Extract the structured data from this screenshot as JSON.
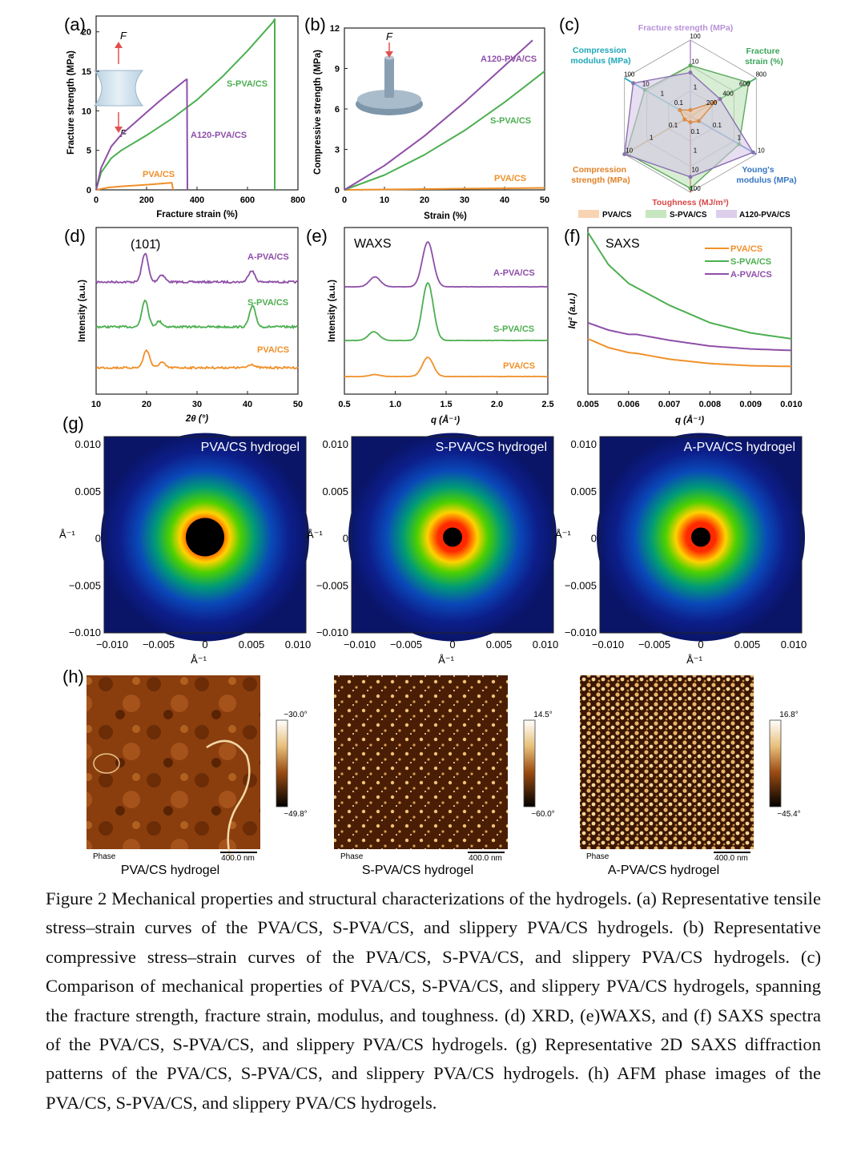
{
  "figure_caption": "Figure 2 Mechanical properties and structural characterizations of the hydrogels. (a) Representative tensile stress–strain curves of the PVA/CS, S-PVA/CS, and slippery PVA/CS hydrogels. (b) Representative compressive stress–strain curves of the PVA/CS, S-PVA/CS, and slippery PVA/CS hydrogels. (c) Comparison of mechanical properties of PVA/CS, S-PVA/CS, and slippery PVA/CS hydrogels, spanning the fracture strength, fracture strain, modulus, and toughness. (d) XRD, (e)WAXS, and (f) SAXS spectra of the PVA/CS, S-PVA/CS, and slippery PVA/CS hydrogels. (g) Representative 2D SAXS diffraction patterns of the PVA/CS, S-PVA/CS, and slippery PVA/CS hydrogels. (h) AFM phase images of the PVA/CS, S-PVA/CS, and slippery PVA/CS hydrogels.",
  "colors": {
    "pva_cs": "#f0902a",
    "s_pva_cs": "#4caf50",
    "a_pva_cs": "#8e4fa8"
  },
  "panels": {
    "a": {
      "letter": "(a)",
      "force_label": "F",
      "xlabel": "Fracture strain (%)",
      "ylabel": "Fracture strength (MPa)",
      "xticks": [
        "0",
        "200",
        "400",
        "600",
        "800"
      ],
      "yticks": [
        "0",
        "5",
        "10",
        "15",
        "20"
      ],
      "labels": {
        "pva_cs": "PVA/CS",
        "s_pva_cs": "S-PVA/CS",
        "a_pva_cs": "A120-PVA/CS"
      }
    },
    "b": {
      "letter": "(b)",
      "force_label": "F",
      "xlabel": "Strain (%)",
      "ylabel": "Compressive strength (MPa)",
      "xticks": [
        "0",
        "10",
        "20",
        "30",
        "40",
        "50"
      ],
      "yticks": [
        "0",
        "3",
        "6",
        "9",
        "12"
      ],
      "labels": {
        "pva_cs": "PVA/CS",
        "s_pva_cs": "S-PVA/CS",
        "a_pva_cs": "A120-PVA/CS"
      }
    },
    "c": {
      "letter": "(c)",
      "axes": [
        "Fracture strength (MPa)",
        "Fracture strain (%)",
        "Young's modulus (MPa)",
        "Toughness (MJ/m³)",
        "Compression strength (MPa)",
        "Compression modulus (MPa)"
      ],
      "ticks_strength": [
        "1",
        "10",
        "100"
      ],
      "ticks_strain": [
        "200",
        "400",
        "600",
        "800"
      ],
      "ticks_young": [
        "0.1",
        "1",
        "10"
      ],
      "ticks_tough": [
        "0.1",
        "1",
        "10",
        "100"
      ],
      "ticks_cstrength": [
        "0.1",
        "1",
        "10"
      ],
      "ticks_cmodulus": [
        "0.1",
        "1",
        "10",
        "100"
      ],
      "legend": [
        "PVA/CS",
        "S-PVA/CS",
        "A120-PVA/CS"
      ]
    },
    "d": {
      "letter": "(d)",
      "peak_label": "(101̄)",
      "xlabel": "2θ (°)",
      "ylabel": "Intensity (a.u.)",
      "xticks": [
        "10",
        "20",
        "30",
        "40",
        "50"
      ],
      "labels": [
        "A-PVA/CS",
        "S-PVA/CS",
        "PVA/CS"
      ]
    },
    "e": {
      "letter": "(e)",
      "title": "WAXS",
      "xlabel": "q (Å⁻¹)",
      "ylabel": "Intensity (a.u.)",
      "xticks": [
        "0.5",
        "1.0",
        "1.5",
        "2.0",
        "2.5"
      ],
      "labels": [
        "A-PVA/CS",
        "S-PVA/CS",
        "PVA/CS"
      ]
    },
    "f": {
      "letter": "(f)",
      "title": "SAXS",
      "xlabel": "q (Å⁻¹)",
      "ylabel": "Iq² (a.u.)",
      "xticks": [
        "0.005",
        "0.006",
        "0.007",
        "0.008",
        "0.009",
        "0.010"
      ],
      "legend": [
        "PVA/CS",
        "S-PVA/CS",
        "A-PVA/CS"
      ]
    },
    "g": {
      "letter": "(g)",
      "ticks": [
        "0.010",
        "0.005",
        "0",
        "−0.005",
        "−0.010"
      ],
      "xticks": [
        "−0.010",
        "−0.005",
        "0",
        "0.005",
        "0.010"
      ],
      "unit": "Å⁻¹",
      "images": [
        {
          "title": "PVA/CS hydrogel"
        },
        {
          "title": "S-PVA/CS hydrogel"
        },
        {
          "title": "A-PVA/CS hydrogel"
        }
      ]
    },
    "h": {
      "letter": "(h)",
      "phase": "Phase",
      "scale": "400.0 nm",
      "images": [
        {
          "title": "PVA/CS hydrogel",
          "max": "−30.0°",
          "min": "−49.8°"
        },
        {
          "title": "S-PVA/CS hydrogel",
          "max": "14.5°",
          "min": "−60.0°"
        },
        {
          "title": "A-PVA/CS hydrogel",
          "max": "16.8°",
          "min": "−45.4°"
        }
      ]
    }
  },
  "chart_data": [
    {
      "type": "line",
      "panel": "a",
      "xlabel": "Fracture strain (%)",
      "ylabel": "Fracture strength (MPa)",
      "xlim": [
        0,
        800
      ],
      "ylim": [
        0,
        22
      ],
      "series": [
        {
          "name": "PVA/CS",
          "x": [
            0,
            50,
            100,
            200,
            300,
            305
          ],
          "y": [
            0,
            0.3,
            0.45,
            0.65,
            0.9,
            0
          ]
        },
        {
          "name": "S-PVA/CS",
          "x": [
            0,
            20,
            60,
            100,
            200,
            300,
            400,
            500,
            600,
            700,
            708,
            708
          ],
          "y": [
            0,
            2.2,
            4.0,
            5.0,
            6.9,
            9.0,
            11.4,
            14.3,
            17.6,
            21.2,
            21.6,
            0
          ]
        },
        {
          "name": "A120-PVA/CS",
          "x": [
            0,
            20,
            60,
            100,
            150,
            200,
            250,
            300,
            350,
            360,
            362
          ],
          "y": [
            0,
            2.8,
            5.5,
            7.0,
            8.4,
            9.8,
            11.2,
            12.5,
            13.8,
            14.0,
            0
          ]
        }
      ]
    },
    {
      "type": "line",
      "panel": "b",
      "xlabel": "Strain (%)",
      "ylabel": "Compressive strength (MPa)",
      "xlim": [
        0,
        50
      ],
      "ylim": [
        0,
        12
      ],
      "series": [
        {
          "name": "PVA/CS",
          "x": [
            0,
            10,
            20,
            30,
            40,
            50
          ],
          "y": [
            0,
            0.03,
            0.06,
            0.09,
            0.12,
            0.15
          ]
        },
        {
          "name": "S-PVA/CS",
          "x": [
            0,
            10,
            20,
            30,
            40,
            50
          ],
          "y": [
            0,
            1.1,
            2.6,
            4.4,
            6.5,
            8.8
          ]
        },
        {
          "name": "A120-PVA/CS",
          "x": [
            0,
            10,
            20,
            30,
            40,
            47
          ],
          "y": [
            0,
            1.8,
            4.0,
            6.5,
            9.2,
            11.1
          ]
        }
      ]
    },
    {
      "type": "radar",
      "panel": "c",
      "axes": [
        "Fracture strength (MPa)",
        "Fracture strain (%)",
        "Young's modulus (MPa)",
        "Toughness (MJ/m³)",
        "Compression strength (MPa)",
        "Compression modulus (MPa)"
      ],
      "series": [
        {
          "name": "PVA/CS",
          "values": [
            0.9,
            300,
            0.18,
            0.17,
            0.15,
            0.3
          ]
        },
        {
          "name": "S-PVA/CS",
          "values": [
            21.5,
            708,
            3.0,
            70,
            8.8,
            12
          ]
        },
        {
          "name": "A120-PVA/CS",
          "values": [
            14,
            360,
            8.0,
            25,
            11,
            40
          ]
        }
      ]
    },
    {
      "type": "line",
      "panel": "d",
      "xlabel": "2θ (°)",
      "ylabel": "Intensity (a.u.)",
      "xlim": [
        10,
        50
      ],
      "series": [
        {
          "name": "A-PVA/CS",
          "peaks": [
            {
              "x": 19.7,
              "h": 1.0
            },
            {
              "x": 23.0,
              "h": 0.25
            },
            {
              "x": 40.8,
              "h": 0.4
            }
          ]
        },
        {
          "name": "S-PVA/CS",
          "peaks": [
            {
              "x": 19.7,
              "h": 1.0
            },
            {
              "x": 22.5,
              "h": 0.2
            },
            {
              "x": 41.0,
              "h": 0.75
            }
          ]
        },
        {
          "name": "PVA/CS",
          "peaks": [
            {
              "x": 20.0,
              "h": 1.0
            },
            {
              "x": 23.0,
              "h": 0.3
            },
            {
              "x": 40.8,
              "h": 0.2
            }
          ]
        }
      ]
    },
    {
      "type": "line",
      "panel": "e",
      "xlabel": "q (Å⁻¹)",
      "ylabel": "Intensity (a.u.)",
      "xlim": [
        0.5,
        2.5
      ],
      "series": [
        {
          "name": "A-PVA/CS",
          "peaks": [
            {
              "x": 0.8,
              "h": 0.22
            },
            {
              "x": 1.32,
              "h": 1.0
            }
          ]
        },
        {
          "name": "S-PVA/CS",
          "peaks": [
            {
              "x": 0.79,
              "h": 0.15
            },
            {
              "x": 1.32,
              "h": 1.0
            }
          ]
        },
        {
          "name": "PVA/CS",
          "peaks": [
            {
              "x": 0.8,
              "h": 0.1
            },
            {
              "x": 1.32,
              "h": 1.0
            }
          ]
        }
      ]
    },
    {
      "type": "line",
      "panel": "f",
      "xlabel": "q (Å⁻¹)",
      "ylabel": "Iq² (a.u.)",
      "xlim": [
        0.005,
        0.01
      ],
      "series": [
        {
          "name": "PVA/CS",
          "x": [
            0.005,
            0.0055,
            0.006,
            0.0062,
            0.007,
            0.008,
            0.009,
            0.01
          ],
          "y": [
            0.27,
            0.21,
            0.175,
            0.17,
            0.13,
            0.1,
            0.085,
            0.08
          ]
        },
        {
          "name": "S-PVA/CS",
          "x": [
            0.005,
            0.0055,
            0.006,
            0.0062,
            0.007,
            0.008,
            0.009,
            0.01
          ],
          "y": [
            1.0,
            0.78,
            0.65,
            0.62,
            0.5,
            0.38,
            0.31,
            0.27
          ]
        },
        {
          "name": "A-PVA/CS",
          "x": [
            0.005,
            0.0055,
            0.006,
            0.0062,
            0.007,
            0.008,
            0.009,
            0.01
          ],
          "y": [
            0.38,
            0.33,
            0.3,
            0.3,
            0.26,
            0.22,
            0.2,
            0.19
          ]
        }
      ]
    }
  ]
}
